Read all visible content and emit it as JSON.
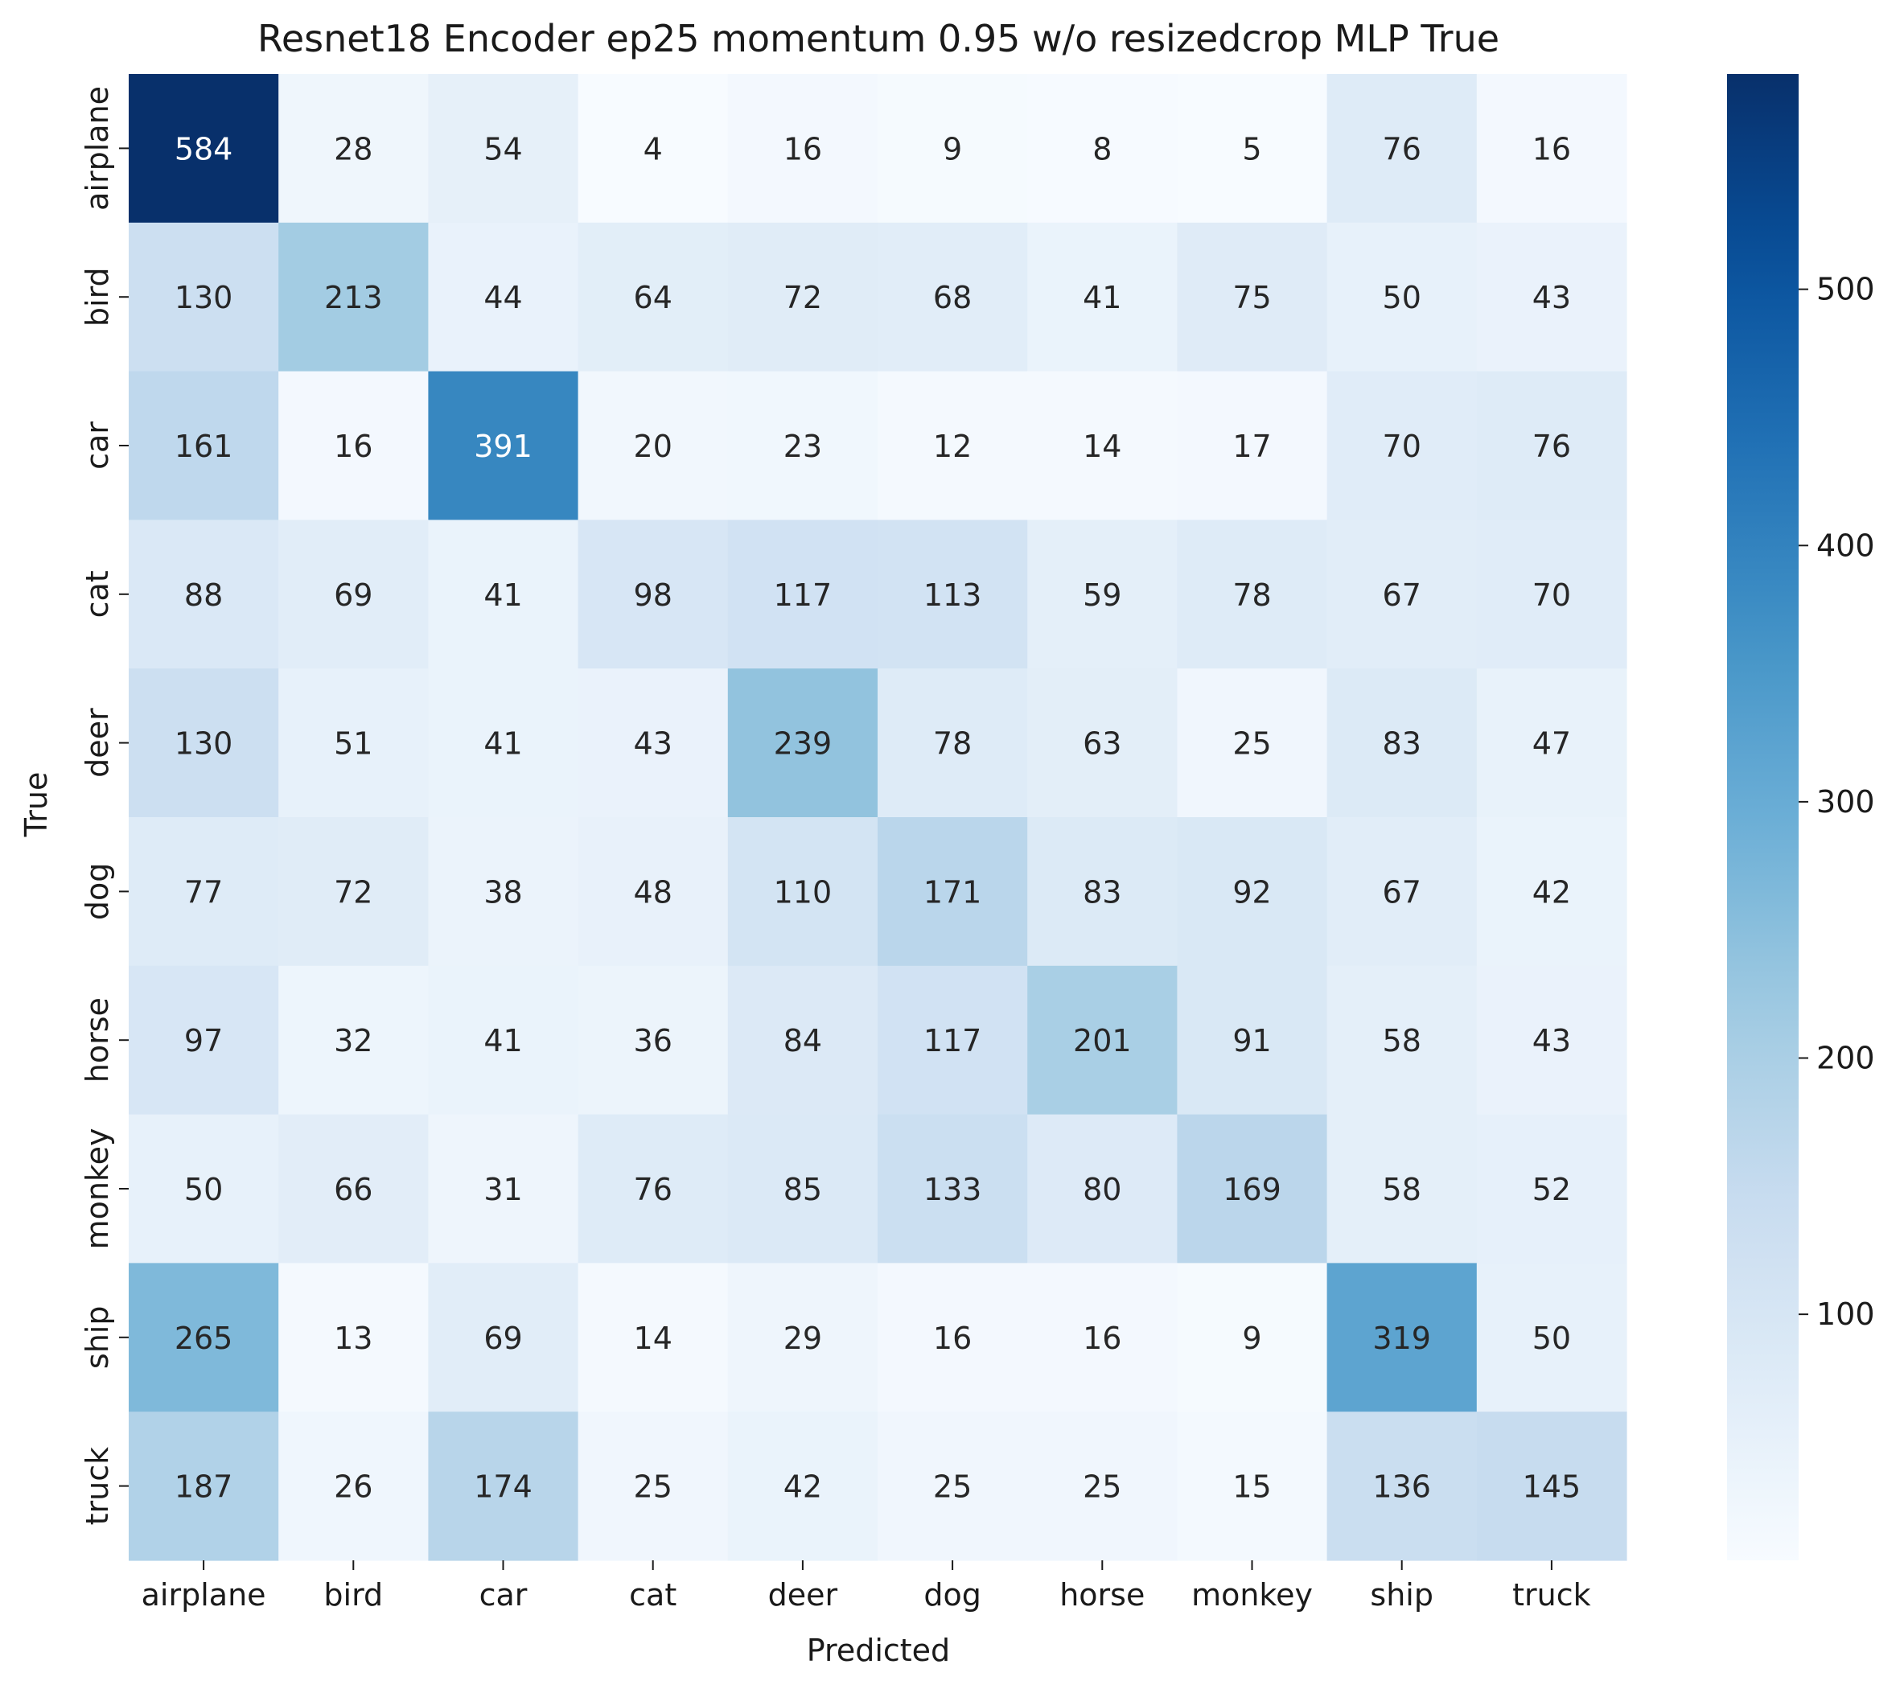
{
  "chart_data": {
    "type": "heatmap",
    "title": "Resnet18 Encoder ep25 momentum 0.95 w/o resizedcrop MLP True",
    "xlabel": "Predicted",
    "ylabel": "True",
    "x_categories": [
      "airplane",
      "bird",
      "car",
      "cat",
      "deer",
      "dog",
      "horse",
      "monkey",
      "ship",
      "truck"
    ],
    "y_categories": [
      "airplane",
      "bird",
      "car",
      "cat",
      "deer",
      "dog",
      "horse",
      "monkey",
      "ship",
      "truck"
    ],
    "values": [
      [
        584,
        28,
        54,
        4,
        16,
        9,
        8,
        5,
        76,
        16
      ],
      [
        130,
        213,
        44,
        64,
        72,
        68,
        41,
        75,
        50,
        43
      ],
      [
        161,
        16,
        391,
        20,
        23,
        12,
        14,
        17,
        70,
        76
      ],
      [
        88,
        69,
        41,
        98,
        117,
        113,
        59,
        78,
        67,
        70
      ],
      [
        130,
        51,
        41,
        43,
        239,
        78,
        63,
        25,
        83,
        47
      ],
      [
        77,
        72,
        38,
        48,
        110,
        171,
        83,
        92,
        67,
        42
      ],
      [
        97,
        32,
        41,
        36,
        84,
        117,
        201,
        91,
        58,
        43
      ],
      [
        50,
        66,
        31,
        76,
        85,
        133,
        80,
        169,
        58,
        52
      ],
      [
        265,
        13,
        69,
        14,
        29,
        16,
        16,
        9,
        319,
        50
      ],
      [
        187,
        26,
        174,
        25,
        42,
        25,
        25,
        15,
        136,
        145
      ]
    ],
    "colormap": "Blues",
    "color_range": [
      4,
      584
    ],
    "colorbar_ticks": [
      100,
      200,
      300,
      400,
      500
    ],
    "cell_annotations": true,
    "legend_position": "right colorbar"
  }
}
